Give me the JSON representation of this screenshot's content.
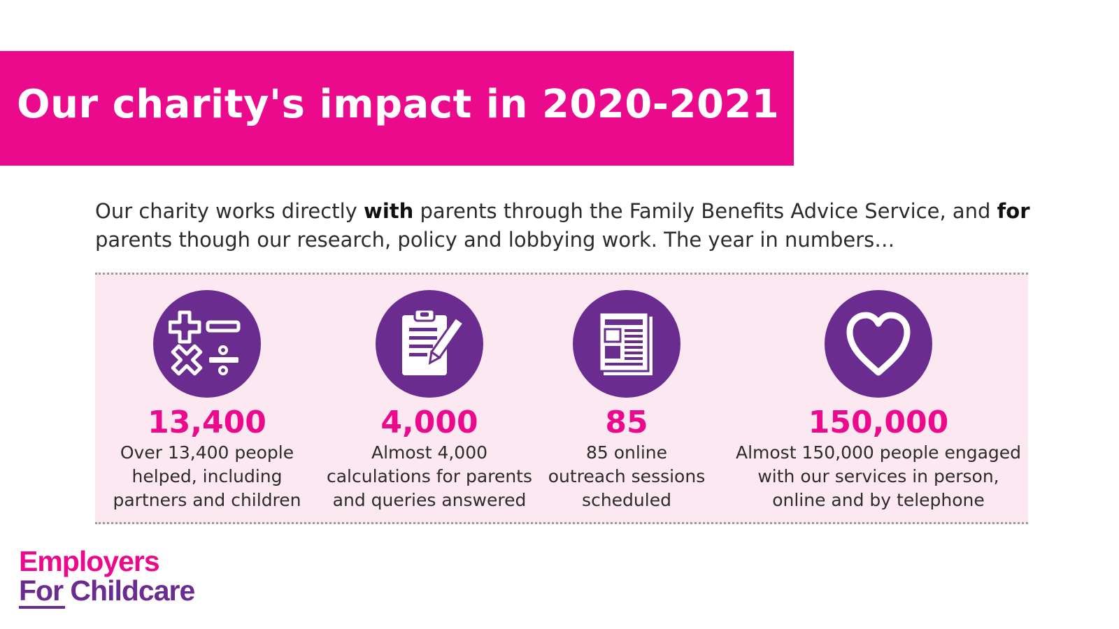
{
  "header": {
    "title": "Our charity's impact in 2020-2021"
  },
  "intro": {
    "part1": "Our charity works directly ",
    "bold1": "with",
    "part2": " parents through the Family Benefits Advice Service, and ",
    "bold2": "for",
    "part3": " parents though our research, policy and lobbying work. The year in numbers…"
  },
  "stats": [
    {
      "number": "13,400",
      "line1": "Over 13,400 people",
      "line2": "helped, including",
      "line3": "partners and children",
      "icon": "math-symbols-icon"
    },
    {
      "number": "4,000",
      "line1": "Almost 4,000",
      "line2": "calculations for parents",
      "line3": "and queries answered",
      "icon": "clipboard-pen-icon"
    },
    {
      "number": "85",
      "line1": "85 online",
      "line2": "outreach sessions",
      "line3": "scheduled",
      "icon": "newspaper-icon"
    },
    {
      "number": "150,000",
      "line1": "Almost 150,000 people engaged",
      "line2": "with our services in person,",
      "line3": "online and by telephone",
      "icon": "heart-icon"
    }
  ],
  "logo": {
    "line1": "Employers",
    "line2": "For Childcare"
  },
  "colors": {
    "accent": "#ec0a8c",
    "purple": "#6a2c8e",
    "panel": "#fce8f1"
  }
}
